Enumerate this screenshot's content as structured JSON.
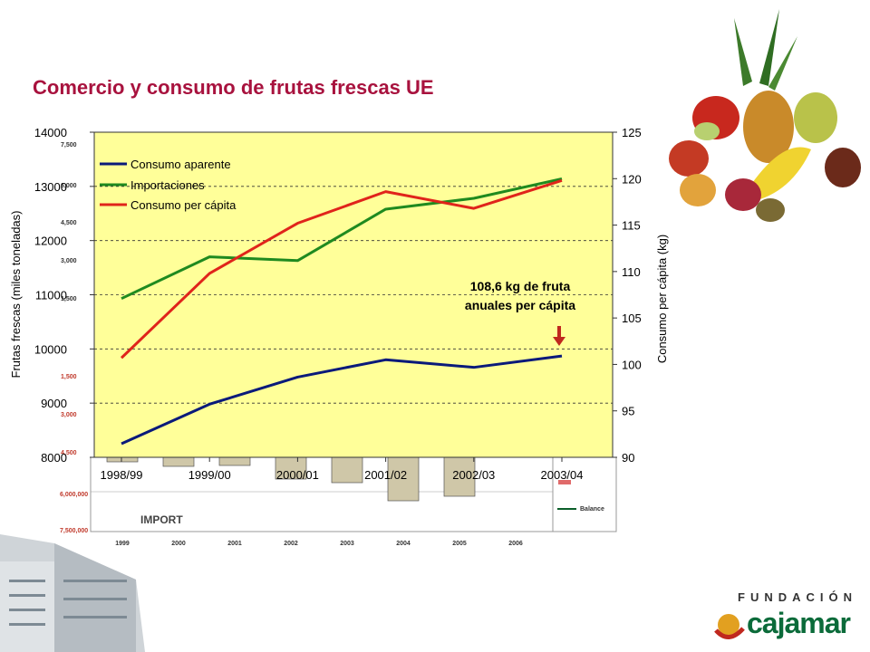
{
  "title": "Comercio y consumo de frutas frescas UE",
  "chart_data": {
    "type": "line",
    "title": "Comercio y consumo de frutas frescas UE",
    "categories": [
      "1998/99",
      "1999/00",
      "2000/01",
      "2001/02",
      "2002/03",
      "2003/04"
    ],
    "ylabel_left": "Frutas frescas (miles toneladas)",
    "ylabel_right": "Consumo per cápita (kg)",
    "ylim_left": [
      8000,
      14000
    ],
    "yticks_left": [
      8000,
      9000,
      10000,
      11000,
      12000,
      13000,
      14000
    ],
    "ylim_right": [
      90,
      125
    ],
    "yticks_right": [
      90,
      95,
      100,
      105,
      110,
      115,
      120,
      125
    ],
    "grid": "horizontal dashed",
    "legend_position": "top-left",
    "series": [
      {
        "name": "Consumo aparente",
        "axis": "left",
        "color": "#0a1a7a",
        "values": [
          8250,
          8980,
          9480,
          9800,
          9660,
          9870
        ]
      },
      {
        "name": "Importaciones",
        "axis": "left",
        "color": "#1f8a1f",
        "values": [
          10930,
          11700,
          11630,
          12580,
          12780,
          13140
        ]
      },
      {
        "name": "Consumo per cápita",
        "axis": "right",
        "color": "#e0241b",
        "values": [
          100.7,
          109.8,
          115.2,
          118.6,
          116.8,
          119.8
        ]
      }
    ],
    "annotation": {
      "line1": "108,6 kg de fruta",
      "line2": "anuales per cápita"
    }
  },
  "background_chart": {
    "years": [
      "1999",
      "2000",
      "2001",
      "2002",
      "2003",
      "2004",
      "2005",
      "2006"
    ],
    "left_labels": [
      "7,500",
      "6,000",
      "4,500",
      "3,000",
      "1,500",
      "1,500",
      "3,000",
      "4,500"
    ],
    "bottom_labels": [
      "6,000,000",
      "7,500,000"
    ],
    "import_label": "IMPORT",
    "legend_balance": "Balance"
  },
  "logo": {
    "line1": "FUNDACIÓN",
    "line2": "cajamar"
  },
  "colors": {
    "plot_bg": "#ffff99",
    "title": "#a8123e",
    "accent": "#0b6b3a"
  }
}
